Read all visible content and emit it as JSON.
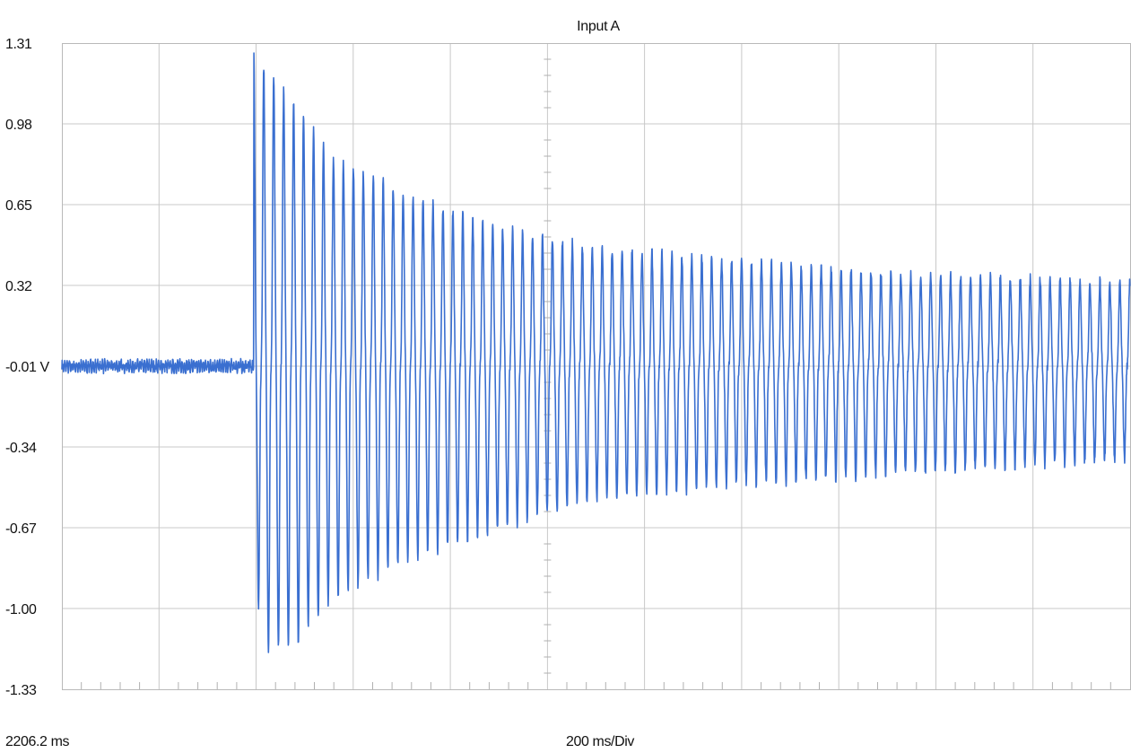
{
  "chart_data": {
    "type": "line",
    "title": "Input A",
    "yticks": [
      "1.31",
      "0.98",
      "0.65",
      "0.32",
      "-0.01 V",
      "-0.34",
      "-0.67",
      "-1.00",
      "-1.33"
    ],
    "ytick_values": [
      1.31,
      0.98,
      0.65,
      0.32,
      -0.01,
      -0.34,
      -0.67,
      -1.0,
      -1.33
    ],
    "ylim": [
      -1.33,
      1.31
    ],
    "x_start_label": "2206.2 ms",
    "x_div_label": "200 ms/Div",
    "x_divisions": 11,
    "x_range_ms": [
      0,
      2200
    ],
    "grid": true,
    "series": [
      {
        "color": "#3a6fd0",
        "baseline_v": -0.01,
        "noise_amplitude_v": 0.03,
        "event_time_ms": 395,
        "oscillation_period_ms": 20.5,
        "envelope_time_ms": [
          395,
          420,
          480,
          560,
          720,
          900,
          1100,
          1400,
          1700,
          2000,
          2200
        ],
        "envelope_pos_v": [
          1.24,
          1.2,
          1.06,
          0.83,
          0.68,
          0.55,
          0.47,
          0.42,
          0.37,
          0.35,
          0.33
        ],
        "envelope_neg_v": [
          -0.86,
          -1.16,
          -1.14,
          -0.95,
          -0.79,
          -0.67,
          -0.55,
          -0.49,
          -0.45,
          -0.41,
          -0.39
        ]
      }
    ]
  }
}
